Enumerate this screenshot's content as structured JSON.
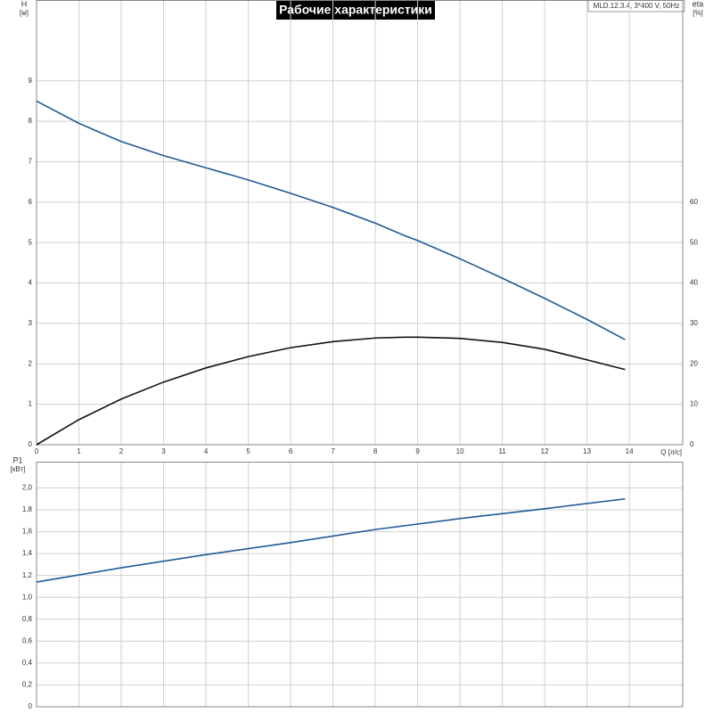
{
  "chart_data": [
    {
      "type": "line",
      "title": "Рабочие характеристики",
      "subtitle": "MLD.12.3.4, 3*400 V, 50Hz",
      "xlabel": "Q [л/с]",
      "ylabel": "H",
      "yunit": "[м]",
      "y2label": "eta",
      "y2unit": "[%]",
      "x": [
        0,
        1,
        2,
        3,
        4,
        5,
        6,
        7,
        8,
        8.7,
        9,
        10,
        11,
        12,
        13,
        13.9
      ],
      "series": [
        {
          "color": "#1f5a96",
          "values": [
            8.5,
            7.95,
            7.5,
            7.15,
            6.85,
            6.55,
            6.22,
            5.87,
            5.48,
            5.17,
            5.05,
            4.6,
            4.12,
            3.62,
            3.1,
            2.6
          ]
        },
        {
          "color": "#111111",
          "axis": "y2",
          "values": [
            0,
            6.2,
            11.3,
            15.5,
            19,
            21.8,
            24,
            25.5,
            26.4,
            26.6,
            26.6,
            26.3,
            25.3,
            23.6,
            21,
            18.6
          ]
        }
      ],
      "xlim": [
        0,
        15.26
      ],
      "xticks": [
        0,
        1,
        2,
        3,
        4,
        5,
        6,
        7,
        8,
        9,
        10,
        11,
        12,
        13,
        14
      ],
      "ylim": [
        0,
        11
      ],
      "yticks": [
        0,
        1,
        2,
        3,
        4,
        5,
        6,
        7,
        8,
        9
      ],
      "y2lim": [
        0,
        110
      ],
      "y2ticks": [
        0,
        10,
        20,
        30,
        40,
        50,
        60
      ],
      "grid": true
    },
    {
      "type": "line",
      "ylabel": "P1",
      "yunit": "[кВт]",
      "x": [
        0,
        2,
        4,
        6,
        8,
        10,
        12,
        13.9
      ],
      "series": [
        {
          "color": "#1f5a96",
          "values": [
            1.14,
            1.27,
            1.39,
            1.5,
            1.62,
            1.72,
            1.81,
            1.9
          ]
        }
      ],
      "xlim": [
        0,
        15.26
      ],
      "ylim": [
        0,
        2.24
      ],
      "yticks": [
        0,
        {
          "value": 0.2,
          "label": "0,2"
        },
        {
          "value": 0.4,
          "label": "0,4"
        },
        {
          "value": 0.6,
          "label": "0,6"
        },
        {
          "value": 0.8,
          "label": "0,8"
        },
        {
          "value": 1.0,
          "label": "1,0"
        },
        {
          "value": 1.2,
          "label": "1,2"
        },
        {
          "value": 1.4,
          "label": "1,4"
        },
        {
          "value": 1.6,
          "label": "1,6"
        },
        {
          "value": 1.8,
          "label": "1,8"
        },
        {
          "value": 2.0,
          "label": "2,0"
        }
      ],
      "grid": true
    }
  ]
}
